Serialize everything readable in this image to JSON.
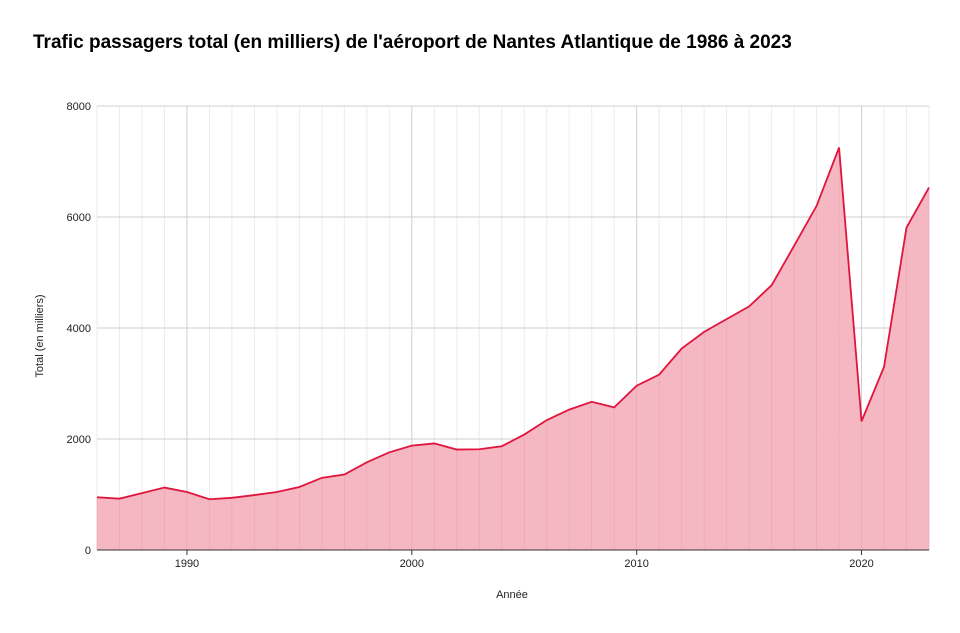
{
  "chart_data": {
    "type": "area",
    "title": "Trafic passagers total (en milliers) de l'aéroport de Nantes Atlantique de 1986 à 2023",
    "xlabel": "Année",
    "ylabel": "Total (en milliers)",
    "xlim": [
      1986,
      2023
    ],
    "ylim": [
      0,
      8000
    ],
    "x_ticks": [
      1990,
      2000,
      2010,
      2020
    ],
    "y_ticks": [
      0,
      2000,
      4000,
      6000,
      8000
    ],
    "grid": true,
    "colors": {
      "line": "#e0153e",
      "fill": "#f4b3bf"
    },
    "series": [
      {
        "x": [
          1986,
          1987,
          1988,
          1989,
          1990,
          1991,
          1992,
          1993,
          1994,
          1995,
          1996,
          1997,
          1998,
          1999,
          2000,
          2001,
          2002,
          2003,
          2004,
          2005,
          2006,
          2007,
          2008,
          2009,
          2010,
          2011,
          2012,
          2013,
          2014,
          2015,
          2016,
          2017,
          2018,
          2019,
          2020,
          2021,
          2022,
          2023
        ],
        "values": [
          950,
          925,
          1025,
          1125,
          1045,
          915,
          940,
          990,
          1045,
          1135,
          1300,
          1360,
          1580,
          1760,
          1880,
          1920,
          1810,
          1815,
          1870,
          2080,
          2340,
          2530,
          2670,
          2570,
          2960,
          3160,
          3630,
          3930,
          4160,
          4390,
          4770,
          5480,
          6200,
          7250,
          2320,
          3300,
          5810,
          6530
        ]
      }
    ]
  }
}
